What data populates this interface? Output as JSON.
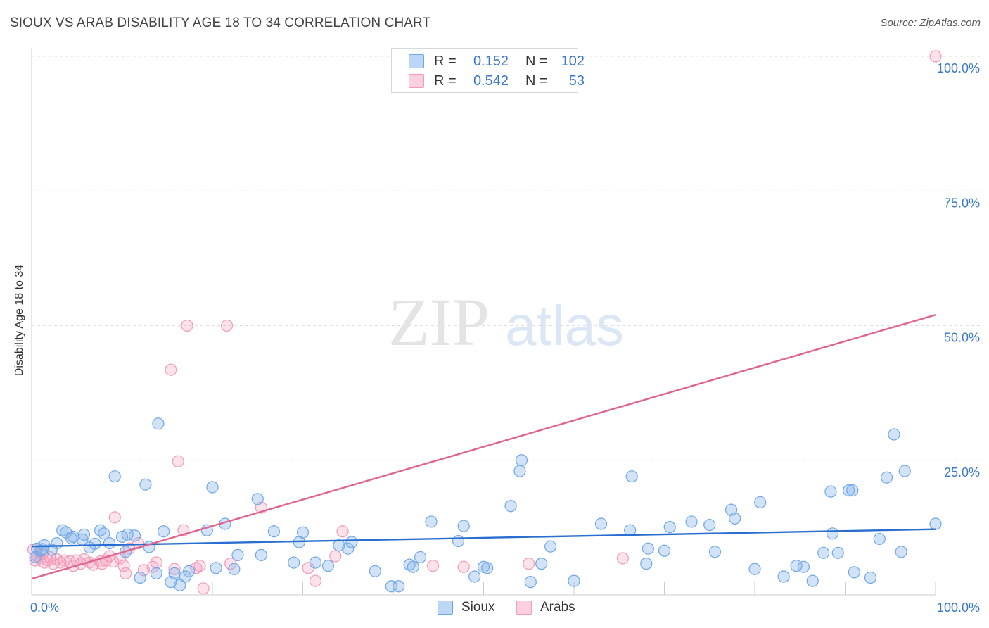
{
  "title": "SIOUX VS ARAB DISABILITY AGE 18 TO 34 CORRELATION CHART",
  "source": "Source: ZipAtlas.com",
  "watermark": {
    "zip": "ZIP",
    "atlas": "atlas"
  },
  "legend": {
    "rows": [
      {
        "r_label": "R =",
        "r_value": "0.152",
        "n_label": "N =",
        "n_value": "102"
      },
      {
        "r_label": "R =",
        "r_value": "0.542",
        "n_label": "N =",
        "n_value": "53"
      }
    ]
  },
  "bottom_legend": {
    "sioux": "Sioux",
    "arabs": "Arabs"
  },
  "chart_data": {
    "type": "scatter",
    "title": "SIOUX VS ARAB DISABILITY AGE 18 TO 34 CORRELATION CHART",
    "xlabel": "",
    "ylabel": "Disability Age 18 to 34",
    "xlim": [
      0,
      100
    ],
    "ylim": [
      0,
      100
    ],
    "x_tick_labels": [
      "0.0%",
      "100.0%"
    ],
    "y_tick_labels": [
      "25.0%",
      "50.0%",
      "75.0%",
      "100.0%"
    ],
    "y_ticks": [
      25,
      50,
      75,
      100
    ],
    "grid": true,
    "legend_position": "top-center",
    "colors": {
      "sioux": "#6fa8e8",
      "sioux_line": "#2a6fcf",
      "arabs": "#f29ab6",
      "arabs_line": "#e0648c",
      "tick_text": "#3a78c8"
    },
    "series": [
      {
        "name": "Sioux",
        "stats": {
          "r": 0.152,
          "n": 102
        },
        "trend": [
          [
            0,
            9.0
          ],
          [
            100,
            12.2
          ]
        ],
        "points": [
          [
            0.4,
            7.0
          ],
          [
            0.6,
            8.6
          ],
          [
            1.0,
            8.2
          ],
          [
            1.4,
            9.2
          ],
          [
            2.2,
            8.4
          ],
          [
            2.8,
            9.6
          ],
          [
            3.4,
            12.0
          ],
          [
            3.8,
            11.6
          ],
          [
            4.4,
            10.5
          ],
          [
            4.6,
            10.8
          ],
          [
            5.6,
            10.3
          ],
          [
            5.8,
            11.2
          ],
          [
            6.4,
            8.8
          ],
          [
            7.0,
            9.5
          ],
          [
            7.6,
            12.0
          ],
          [
            8.0,
            11.4
          ],
          [
            8.6,
            9.6
          ],
          [
            9.2,
            22.0
          ],
          [
            10.0,
            10.8
          ],
          [
            10.4,
            8.0
          ],
          [
            10.6,
            11.2
          ],
          [
            11.4,
            11.0
          ],
          [
            12.0,
            3.2
          ],
          [
            12.6,
            20.5
          ],
          [
            13.0,
            8.9
          ],
          [
            13.8,
            4.0
          ],
          [
            14.0,
            31.8
          ],
          [
            14.6,
            11.8
          ],
          [
            15.4,
            2.4
          ],
          [
            15.8,
            4.0
          ],
          [
            16.4,
            1.8
          ],
          [
            17.0,
            3.4
          ],
          [
            17.4,
            4.4
          ],
          [
            19.4,
            12.0
          ],
          [
            20.0,
            20.0
          ],
          [
            20.4,
            5.0
          ],
          [
            21.4,
            13.2
          ],
          [
            22.4,
            4.8
          ],
          [
            22.8,
            7.4
          ],
          [
            25.0,
            17.8
          ],
          [
            25.4,
            7.4
          ],
          [
            26.8,
            11.8
          ],
          [
            29.0,
            6.0
          ],
          [
            29.6,
            9.8
          ],
          [
            30.0,
            11.6
          ],
          [
            31.4,
            6.0
          ],
          [
            32.8,
            5.4
          ],
          [
            34.0,
            9.2
          ],
          [
            35.0,
            8.6
          ],
          [
            35.4,
            9.8
          ],
          [
            38.0,
            4.4
          ],
          [
            39.8,
            1.6
          ],
          [
            40.6,
            1.6
          ],
          [
            41.8,
            5.6
          ],
          [
            42.2,
            5.2
          ],
          [
            43.0,
            7.0
          ],
          [
            44.2,
            13.6
          ],
          [
            47.2,
            10.0
          ],
          [
            47.8,
            12.8
          ],
          [
            49.0,
            3.4
          ],
          [
            50.0,
            5.2
          ],
          [
            50.4,
            5.0
          ],
          [
            53.0,
            16.5
          ],
          [
            54.0,
            23.0
          ],
          [
            54.2,
            25.0
          ],
          [
            55.2,
            2.4
          ],
          [
            56.4,
            5.8
          ],
          [
            57.4,
            9.0
          ],
          [
            60.0,
            2.6
          ],
          [
            63.0,
            13.2
          ],
          [
            66.2,
            12.0
          ],
          [
            66.4,
            22.0
          ],
          [
            68.0,
            5.8
          ],
          [
            68.2,
            8.6
          ],
          [
            70.0,
            8.2
          ],
          [
            70.6,
            12.6
          ],
          [
            73.0,
            13.6
          ],
          [
            75.0,
            13.0
          ],
          [
            75.6,
            8.0
          ],
          [
            77.4,
            15.8
          ],
          [
            77.8,
            14.2
          ],
          [
            80.0,
            4.8
          ],
          [
            80.6,
            17.2
          ],
          [
            83.2,
            3.4
          ],
          [
            84.6,
            5.4
          ],
          [
            85.4,
            5.2
          ],
          [
            86.4,
            2.6
          ],
          [
            87.6,
            7.8
          ],
          [
            88.4,
            19.2
          ],
          [
            88.6,
            11.4
          ],
          [
            89.2,
            7.8
          ],
          [
            90.4,
            19.4
          ],
          [
            90.8,
            19.4
          ],
          [
            91.0,
            4.2
          ],
          [
            92.8,
            3.2
          ],
          [
            93.8,
            10.4
          ],
          [
            94.6,
            21.8
          ],
          [
            95.4,
            29.8
          ],
          [
            96.2,
            8.0
          ],
          [
            96.6,
            23.0
          ],
          [
            100.0,
            13.2
          ],
          [
            1.2,
            8.5
          ]
        ]
      },
      {
        "name": "Arabs",
        "stats": {
          "r": 0.542,
          "n": 53
        },
        "trend": [
          [
            0,
            3.0
          ],
          [
            100,
            52.0
          ]
        ],
        "points": [
          [
            0.2,
            8.4
          ],
          [
            0.4,
            6.4
          ],
          [
            0.6,
            7.2
          ],
          [
            1.0,
            6.6
          ],
          [
            1.2,
            7.6
          ],
          [
            1.4,
            6.0
          ],
          [
            1.8,
            6.4
          ],
          [
            2.0,
            7.0
          ],
          [
            2.4,
            5.8
          ],
          [
            2.8,
            6.6
          ],
          [
            3.2,
            6.0
          ],
          [
            3.6,
            6.4
          ],
          [
            4.2,
            6.2
          ],
          [
            4.6,
            5.4
          ],
          [
            5.0,
            6.4
          ],
          [
            5.4,
            5.8
          ],
          [
            5.8,
            6.6
          ],
          [
            6.4,
            6.0
          ],
          [
            6.8,
            5.6
          ],
          [
            7.6,
            6.2
          ],
          [
            7.8,
            5.8
          ],
          [
            8.2,
            6.4
          ],
          [
            8.6,
            7.2
          ],
          [
            9.0,
            6.2
          ],
          [
            9.2,
            14.4
          ],
          [
            9.8,
            6.8
          ],
          [
            10.2,
            5.4
          ],
          [
            10.4,
            4.0
          ],
          [
            10.8,
            8.6
          ],
          [
            11.8,
            9.6
          ],
          [
            12.4,
            4.6
          ],
          [
            13.4,
            5.2
          ],
          [
            13.8,
            6.0
          ],
          [
            15.4,
            41.8
          ],
          [
            15.8,
            4.8
          ],
          [
            16.2,
            24.8
          ],
          [
            16.8,
            12.0
          ],
          [
            17.2,
            50.0
          ],
          [
            18.2,
            5.0
          ],
          [
            18.6,
            5.4
          ],
          [
            19.0,
            1.2
          ],
          [
            21.6,
            50.0
          ],
          [
            22.0,
            5.8
          ],
          [
            25.4,
            16.2
          ],
          [
            30.6,
            5.0
          ],
          [
            31.4,
            2.6
          ],
          [
            33.6,
            7.2
          ],
          [
            34.4,
            11.8
          ],
          [
            44.4,
            5.4
          ],
          [
            47.8,
            5.2
          ],
          [
            55.0,
            5.8
          ],
          [
            65.4,
            6.8
          ],
          [
            100.0,
            100.0
          ]
        ]
      }
    ]
  }
}
